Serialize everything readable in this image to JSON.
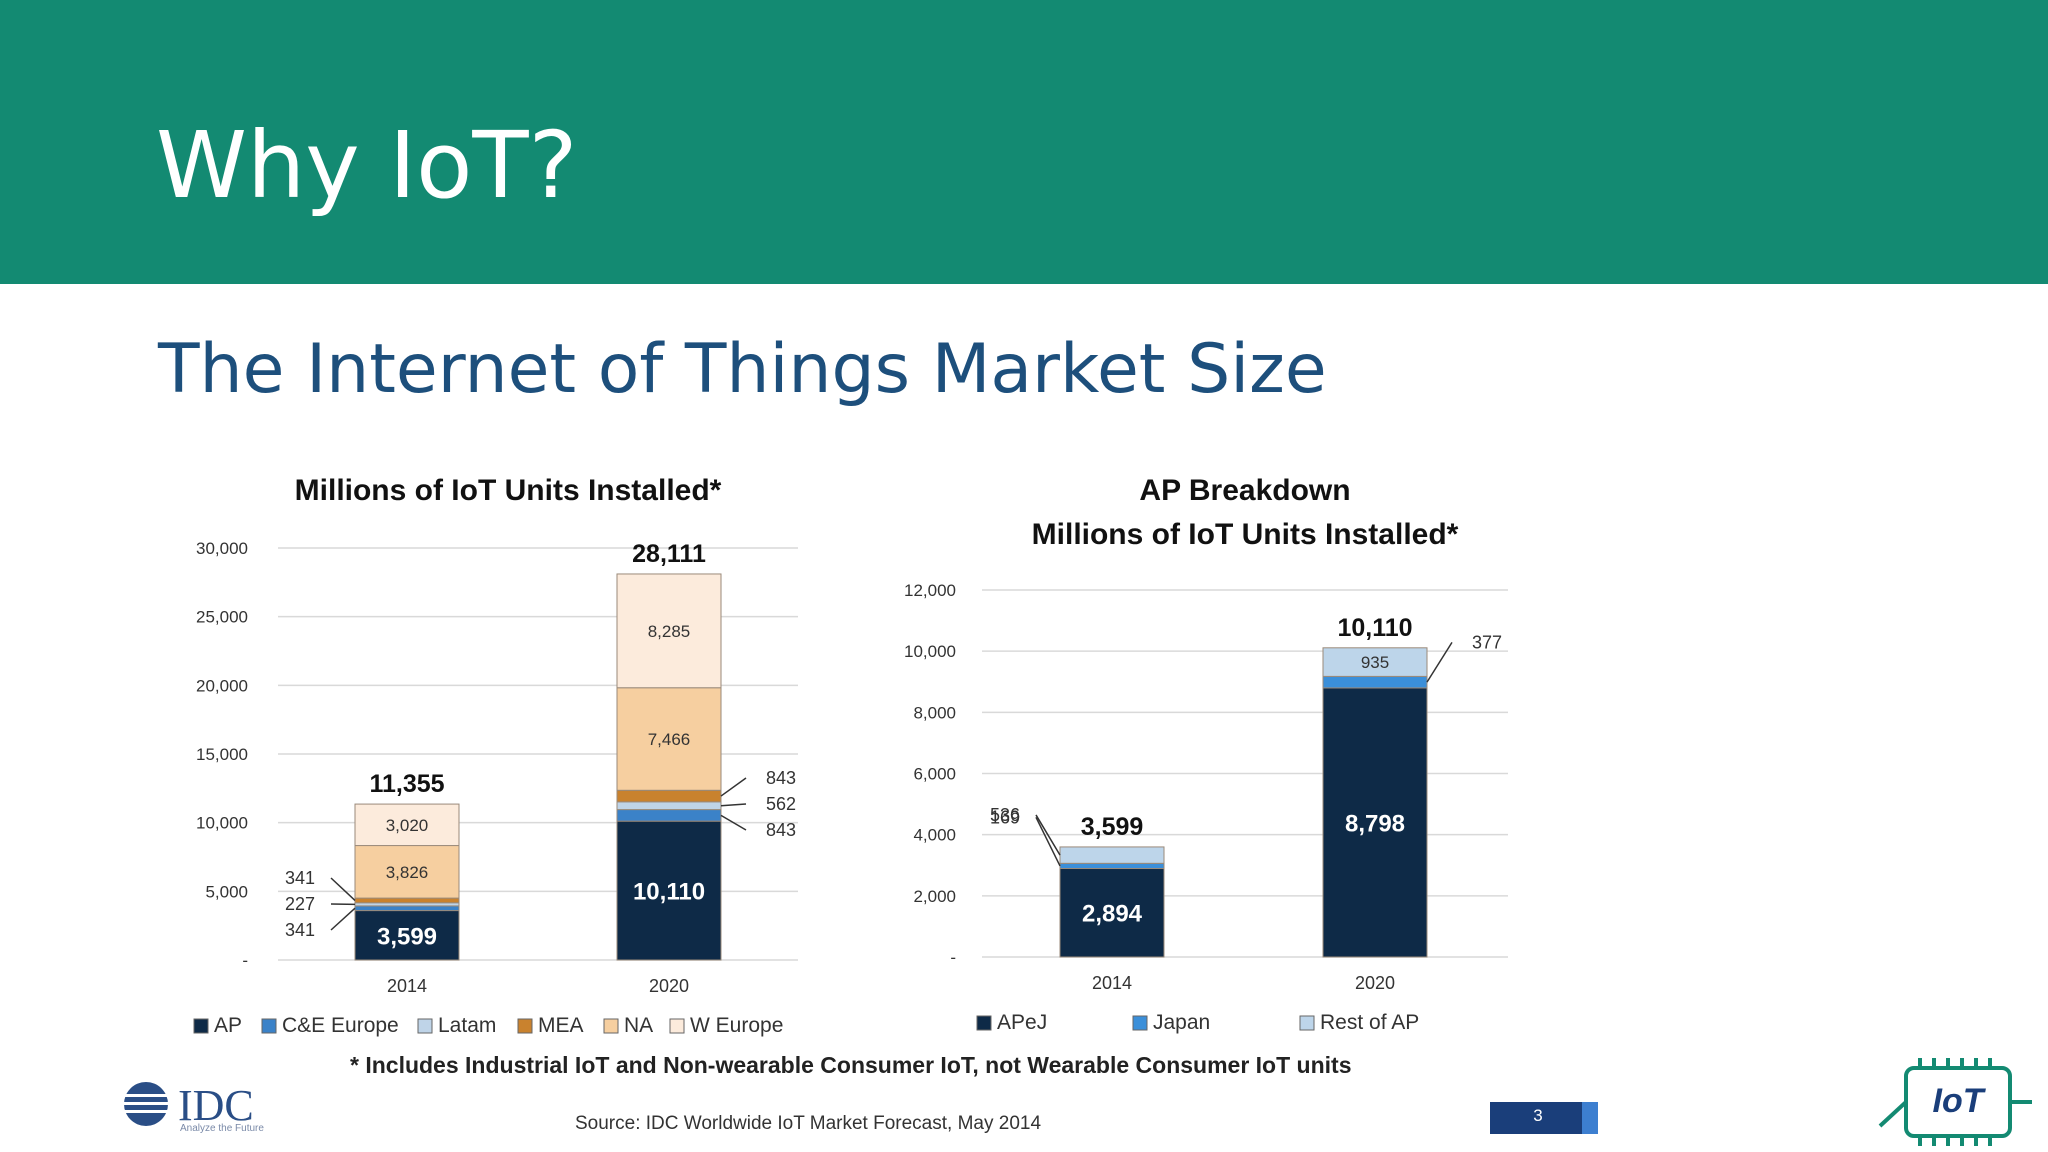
{
  "slide": {
    "title": "Why IoT?",
    "subtitle": "The Internet of Things Market Size",
    "footnote": "* Includes Industrial IoT and Non-wearable Consumer IoT, not Wearable Consumer IoT units",
    "source": "Source: IDC Worldwide IoT Market Forecast, May 2014",
    "page_number": "3",
    "logo_text": "IDC",
    "logo_tagline": "Analyze the Future",
    "badge_text": "IoT"
  },
  "colors": {
    "header": "#138a72",
    "AP": "#0e2a47",
    "C&E Europe": "#3b82c8",
    "Latam": "#bfd4e8",
    "MEA": "#c9822e",
    "NA": "#f6cfa0",
    "W Europe": "#fcebdc",
    "APeJ": "#0e2a47",
    "Japan": "#3b8fd9",
    "Rest of AP": "#bdd5ea"
  },
  "chart_data": [
    {
      "type": "bar",
      "stacked": true,
      "title": "Millions of IoT Units Installed*",
      "categories": [
        "2014",
        "2020"
      ],
      "series": [
        {
          "name": "AP",
          "values": [
            3599,
            10110
          ]
        },
        {
          "name": "C&E Europe",
          "values": [
            341,
            843
          ]
        },
        {
          "name": "Latam",
          "values": [
            227,
            562
          ]
        },
        {
          "name": "MEA",
          "values": [
            341,
            843
          ]
        },
        {
          "name": "NA",
          "values": [
            3826,
            7466
          ]
        },
        {
          "name": "W Europe",
          "values": [
            3020,
            8285
          ]
        }
      ],
      "totals": [
        "11,355",
        "28,111"
      ],
      "value_labels": [
        [
          "3,599",
          "341",
          "227",
          "341",
          "3,826",
          "3,020"
        ],
        [
          "10,110",
          "843",
          "562",
          "843",
          "7,466",
          "8,285"
        ]
      ],
      "ylim": [
        0,
        30000
      ],
      "yticks": [
        "-",
        "5,000",
        "10,000",
        "15,000",
        "20,000",
        "25,000",
        "30,000"
      ],
      "legend": [
        "AP",
        "C&E Europe",
        "Latam",
        "MEA",
        "NA",
        "W Europe"
      ]
    },
    {
      "type": "bar",
      "stacked": true,
      "title": "AP Breakdown",
      "title_line2": "Millions of IoT Units Installed*",
      "categories": [
        "2014",
        "2020"
      ],
      "series": [
        {
          "name": "APeJ",
          "values": [
            2894,
            8798
          ]
        },
        {
          "name": "Japan",
          "values": [
            169,
            377
          ]
        },
        {
          "name": "Rest of AP",
          "values": [
            536,
            935
          ]
        }
      ],
      "totals": [
        "3,599",
        "10,110"
      ],
      "value_labels": [
        [
          "2,894",
          "169",
          "536"
        ],
        [
          "8,798",
          "377",
          "935"
        ]
      ],
      "ylim": [
        0,
        12000
      ],
      "yticks": [
        "-",
        "2,000",
        "4,000",
        "6,000",
        "8,000",
        "10,000",
        "12,000"
      ],
      "legend": [
        "APeJ",
        "Japan",
        "Rest of AP"
      ]
    }
  ]
}
